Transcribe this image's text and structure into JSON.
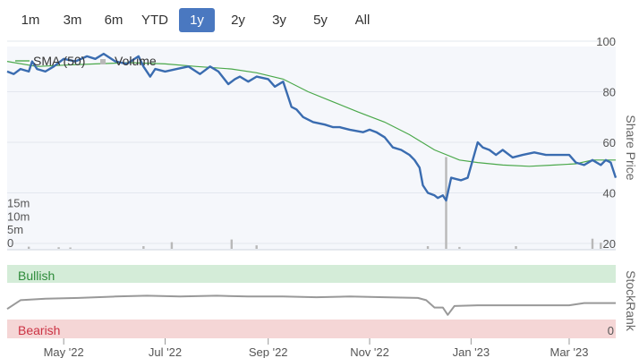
{
  "range_selector": {
    "buttons": [
      "1m",
      "3m",
      "6m",
      "YTD",
      "1y",
      "2y",
      "3y",
      "5y",
      "All"
    ],
    "active": "1y"
  },
  "colors": {
    "price_line": "#3a6cb0",
    "sma_line": "#4aa84a",
    "stockrank_line": "#999999",
    "volume_bar": "#b8b8b8",
    "bullish_band": "#d4ecd8",
    "bearish_band": "#f5d6d6",
    "bullish_text": "#2e8b3a",
    "bearish_text": "#cc3344",
    "active_button": "#4a78c0"
  },
  "chart_data": [
    {
      "type": "line",
      "legend": [
        "SMA (50)",
        "Volume"
      ],
      "legend_position": "top-left",
      "ylabel": "Share Price",
      "y_ticks": [
        20,
        40,
        60,
        80,
        100
      ],
      "ylim": [
        20,
        100
      ],
      "volume_ticks": [
        "0",
        "5m",
        "10m",
        "15m"
      ],
      "volume_ylim": [
        0,
        35
      ],
      "x_ticks": [
        "May '22",
        "Jul '22",
        "Sep '22",
        "Nov '22",
        "Jan '23",
        "Mar '23"
      ],
      "x_tick_dates": [
        "2022-05-01",
        "2022-07-01",
        "2022-09-01",
        "2022-11-01",
        "2023-01-01",
        "2023-03-01"
      ],
      "xlim": [
        "2022-03-28",
        "2023-03-29"
      ],
      "grid": true,
      "series": [
        {
          "name": "",
          "x": [
            "2022-03-28",
            "2022-04-01",
            "2022-04-05",
            "2022-04-10",
            "2022-04-12",
            "2022-04-15",
            "2022-04-20",
            "2022-04-25",
            "2022-05-01",
            "2022-05-08",
            "2022-05-15",
            "2022-05-20",
            "2022-05-25",
            "2022-06-01",
            "2022-06-08",
            "2022-06-15",
            "2022-06-18",
            "2022-06-22",
            "2022-06-25",
            "2022-07-01",
            "2022-07-08",
            "2022-07-15",
            "2022-07-22",
            "2022-07-28",
            "2022-08-02",
            "2022-08-08",
            "2022-08-12",
            "2022-08-15",
            "2022-08-20",
            "2022-08-25",
            "2022-09-01",
            "2022-09-05",
            "2022-09-10",
            "2022-09-15",
            "2022-09-18",
            "2022-09-22",
            "2022-09-28",
            "2022-10-05",
            "2022-10-10",
            "2022-10-14",
            "2022-10-20",
            "2022-10-28",
            "2022-11-01",
            "2022-11-05",
            "2022-11-10",
            "2022-11-15",
            "2022-11-20",
            "2022-11-25",
            "2022-11-28",
            "2022-12-01",
            "2022-12-03",
            "2022-12-06",
            "2022-12-10",
            "2022-12-12",
            "2022-12-15",
            "2022-12-17",
            "2022-12-20",
            "2022-12-26",
            "2022-12-30",
            "2023-01-02",
            "2023-01-05",
            "2023-01-08",
            "2023-01-12",
            "2023-01-16",
            "2023-01-20",
            "2023-01-26",
            "2023-02-01",
            "2023-02-08",
            "2023-02-15",
            "2023-02-22",
            "2023-03-01",
            "2023-03-05",
            "2023-03-10",
            "2023-03-15",
            "2023-03-20",
            "2023-03-23",
            "2023-03-26",
            "2023-03-29"
          ],
          "values": [
            88,
            87,
            89,
            88,
            92,
            89,
            88,
            90,
            93,
            92,
            94,
            93,
            95,
            92,
            91,
            94,
            90,
            86,
            89,
            88,
            89,
            90,
            87,
            90,
            88,
            83,
            85,
            86,
            84,
            86,
            85,
            82,
            84,
            74,
            73,
            70,
            68,
            67,
            66,
            66,
            65,
            64,
            65,
            64,
            62,
            58,
            57,
            55,
            53,
            50,
            43,
            40,
            39,
            38,
            39,
            37,
            46,
            45,
            46,
            53,
            60,
            58,
            57,
            55,
            57,
            54,
            55,
            56,
            55,
            55,
            55,
            52,
            51,
            53,
            51,
            53,
            52,
            46
          ]
        },
        {
          "name": "SMA (50)",
          "x": [
            "2022-03-28",
            "2022-04-15",
            "2022-05-01",
            "2022-05-20",
            "2022-06-10",
            "2022-07-01",
            "2022-07-20",
            "2022-08-10",
            "2022-08-25",
            "2022-09-10",
            "2022-09-25",
            "2022-10-10",
            "2022-10-25",
            "2022-11-10",
            "2022-11-25",
            "2022-12-10",
            "2022-12-25",
            "2023-01-05",
            "2023-01-20",
            "2023-02-05",
            "2023-02-20",
            "2023-03-05",
            "2023-03-15",
            "2023-03-29"
          ],
          "values": [
            92,
            90,
            90.5,
            91,
            91.5,
            91,
            90,
            89,
            87.5,
            85,
            80,
            76,
            72,
            68,
            63,
            57,
            53,
            52,
            51,
            50.5,
            51,
            51.5,
            53,
            53
          ]
        }
      ],
      "volume_spikes_m": [
        {
          "x": "2022-04-10",
          "v": 0.8
        },
        {
          "x": "2022-04-28",
          "v": 0.6
        },
        {
          "x": "2022-05-05",
          "v": 0.5
        },
        {
          "x": "2022-06-18",
          "v": 1.0
        },
        {
          "x": "2022-07-05",
          "v": 2.5
        },
        {
          "x": "2022-08-10",
          "v": 3.5
        },
        {
          "x": "2022-08-25",
          "v": 1.3
        },
        {
          "x": "2022-12-06",
          "v": 1.0
        },
        {
          "x": "2022-12-17",
          "v": 34.5
        },
        {
          "x": "2022-12-25",
          "v": 0.7
        },
        {
          "x": "2023-01-28",
          "v": 1.0
        },
        {
          "x": "2023-03-15",
          "v": 3.8
        },
        {
          "x": "2023-03-20",
          "v": 2.3
        }
      ]
    },
    {
      "type": "line",
      "ylabel": "StockRank",
      "y_ticks": [
        0
      ],
      "ylim": [
        0,
        100
      ],
      "bands": [
        "Bullish",
        "Bearish"
      ],
      "series": [
        {
          "name": "",
          "x": [
            "2022-03-28",
            "2022-04-05",
            "2022-04-20",
            "2022-05-10",
            "2022-06-01",
            "2022-06-20",
            "2022-07-10",
            "2022-08-01",
            "2022-08-20",
            "2022-09-10",
            "2022-09-30",
            "2022-10-20",
            "2022-11-10",
            "2022-11-30",
            "2022-12-05",
            "2022-12-10",
            "2022-12-15",
            "2022-12-18",
            "2022-12-22",
            "2023-01-05",
            "2023-01-20",
            "2023-02-10",
            "2023-03-01",
            "2023-03-10",
            "2023-03-29"
          ],
          "values": [
            40,
            52,
            54,
            55,
            57,
            58,
            57,
            58,
            57,
            57,
            56,
            57,
            56,
            55,
            52,
            42,
            42,
            32,
            44,
            45,
            45,
            45,
            45,
            48,
            48
          ]
        }
      ]
    }
  ]
}
